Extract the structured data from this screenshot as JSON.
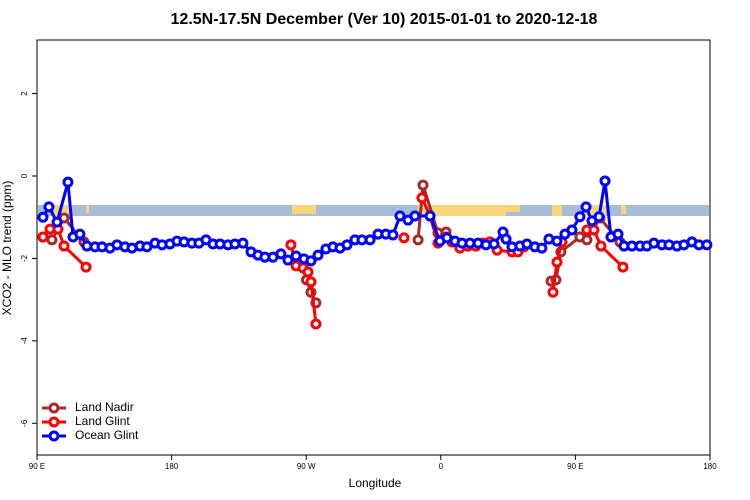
{
  "chart_data": {
    "type": "line",
    "title": "12.5N-17.5N December (Ver 10)   2015-01-01 to 2020-12-18",
    "xlabel": "Longitude",
    "ylabel": "XCO2 - MLO trend (ppm)",
    "xlim": [
      90,
      540
    ],
    "ylim": [
      -6.77,
      3.3
    ],
    "xticks": [
      {
        "value": 90,
        "label": "90 E"
      },
      {
        "value": 180,
        "label": "180"
      },
      {
        "value": 270,
        "label": "90 W"
      },
      {
        "value": 360,
        "label": "0"
      },
      {
        "value": 450,
        "label": "90 E"
      },
      {
        "value": 540,
        "label": "180"
      }
    ],
    "yticks": [
      -6,
      -4,
      -2,
      0,
      2
    ],
    "legend": "bottom-left",
    "series": [
      {
        "name": "Land Nadir",
        "color": "#a52a2a",
        "x": [
          94.0,
          100.0,
          108.1,
          121.4,
          null,
          270.2,
          273.2,
          276.5,
          null,
          344.8,
          348.1,
          358.1,
          363.5,
          null,
          433.7,
          437.0,
          440.3,
          453.0,
          457.7,
          466.4,
          479.8
        ],
        "values": [
          -1.48,
          -1.55,
          -1.02,
          -1.6,
          null,
          -2.52,
          -2.82,
          -3.08,
          null,
          -1.55,
          -0.22,
          -1.38,
          -1.36,
          null,
          -2.55,
          -2.52,
          -1.84,
          -1.48,
          -1.55,
          -1.02,
          -1.6
        ]
      },
      {
        "name": "Land Glint",
        "color": "#ff0000",
        "x": [
          94.0,
          98.7,
          104.0,
          108.1,
          122.8,
          null,
          259.8,
          263.2,
          267.9,
          271.2,
          273.2,
          276.5,
          null,
          335.4,
          null,
          347.4,
          352.8,
          358.1,
          363.5,
          367.5,
          372.8,
          378.2,
          383.5,
          388.2,
          392.9,
          397.6,
          407.6,
          411.6,
          415.6,
          null,
          435.0,
          437.7,
          441.0,
          null,
          457.7,
          462.4,
          467.1,
          481.8
        ],
        "values": [
          -1.48,
          -1.29,
          -1.29,
          -1.7,
          -2.21,
          null,
          -1.67,
          -2.18,
          -2.23,
          -2.33,
          -2.57,
          -3.59,
          null,
          -1.5,
          null,
          -0.53,
          -0.97,
          -1.63,
          -1.48,
          -1.6,
          -1.75,
          -1.7,
          -1.7,
          -1.63,
          -1.6,
          -1.8,
          -1.84,
          -1.84,
          -1.72,
          null,
          -2.82,
          -2.09,
          -1.6,
          null,
          -1.31,
          -1.31,
          -1.7,
          -2.21
        ]
      },
      {
        "name": "Ocean Glint",
        "color": "#0000ff",
        "x": [
          94.0,
          98.0,
          103.4,
          110.7,
          114.1,
          118.7,
          123.4,
          128.8,
          133.5,
          138.8,
          143.5,
          148.8,
          153.5,
          158.9,
          163.5,
          168.9,
          173.6,
          178.9,
          183.6,
          188.3,
          193.6,
          198.3,
          203.0,
          207.7,
          212.4,
          217.7,
          222.4,
          227.7,
          233.1,
          237.7,
          242.4,
          247.8,
          253.1,
          257.8,
          263.2,
          268.5,
          273.2,
          277.9,
          283.2,
          287.9,
          292.6,
          297.3,
          302.6,
          307.3,
          312.7,
          318.0,
          323.3,
          328.0,
          332.7,
          338.1,
          342.7,
          352.8,
          359.4,
          364.1,
          369.5,
          374.2,
          379.5,
          384.9,
          390.2,
          395.6,
          401.6,
          403.6,
          407.6,
          412.9,
          417.6,
          422.9,
          427.6,
          432.3,
          437.7,
          443.0,
          447.7,
          453.0,
          457.1,
          461.1,
          465.8,
          469.8,
          473.8,
          478.5,
          482.5,
          487.8,
          493.2,
          497.8,
          502.5,
          507.9,
          512.6,
          517.9,
          522.6,
          527.9,
          532.6,
          537.9
        ],
        "values": [
          -1.0,
          -0.75,
          -1.12,
          -0.15,
          -1.48,
          -1.41,
          -1.7,
          -1.72,
          -1.72,
          -1.75,
          -1.67,
          -1.72,
          -1.75,
          -1.7,
          -1.72,
          -1.63,
          -1.67,
          -1.65,
          -1.58,
          -1.6,
          -1.63,
          -1.63,
          -1.55,
          -1.65,
          -1.65,
          -1.67,
          -1.65,
          -1.63,
          -1.84,
          -1.92,
          -1.97,
          -1.97,
          -1.89,
          -2.04,
          -1.94,
          -2.01,
          -2.06,
          -1.92,
          -1.77,
          -1.72,
          -1.75,
          -1.67,
          -1.55,
          -1.55,
          -1.55,
          -1.41,
          -1.41,
          -1.43,
          -0.97,
          -1.07,
          -0.97,
          -0.97,
          -1.58,
          -1.5,
          -1.58,
          -1.63,
          -1.63,
          -1.63,
          -1.67,
          -1.65,
          -1.36,
          -1.53,
          -1.72,
          -1.7,
          -1.65,
          -1.72,
          -1.75,
          -1.53,
          -1.58,
          -1.41,
          -1.31,
          -0.99,
          -0.75,
          -1.09,
          -0.99,
          -0.12,
          -1.48,
          -1.41,
          -1.7,
          -1.7,
          -1.7,
          -1.7,
          -1.63,
          -1.67,
          -1.67,
          -1.7,
          -1.67,
          -1.6,
          -1.67,
          -1.67
        ]
      }
    ]
  }
}
